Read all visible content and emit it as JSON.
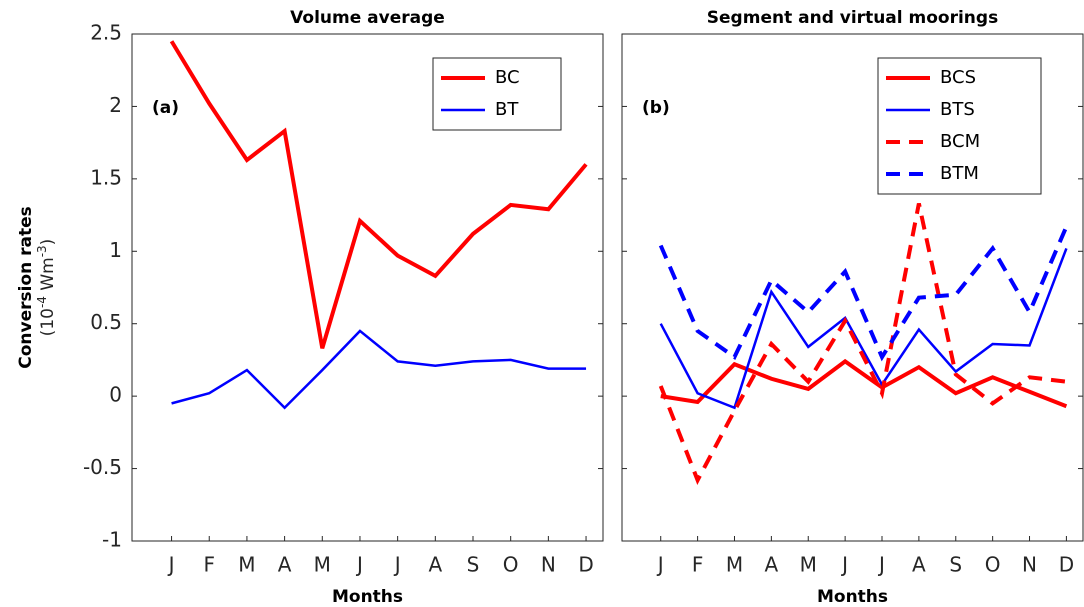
{
  "chart_data": [
    {
      "type": "line",
      "title": "Volume average",
      "panel_label": "(a)",
      "xlabel": "Months",
      "ylabel": "Conversion rates",
      "ylabel_units": [
        "(10",
        "-4",
        " Wm",
        "-3",
        ")"
      ],
      "categories": [
        "J",
        "F",
        "M",
        "A",
        "M",
        "J",
        "J",
        "A",
        "S",
        "O",
        "N",
        "D"
      ],
      "series": [
        {
          "name": "BC",
          "color": "#ff0000",
          "style": "solid",
          "width": "thick",
          "values": [
            2.45,
            2.02,
            1.63,
            1.83,
            0.33,
            1.21,
            0.97,
            0.83,
            1.12,
            1.32,
            1.29,
            1.6
          ]
        },
        {
          "name": "BT",
          "color": "#0000ff",
          "style": "solid",
          "width": "thin",
          "values": [
            -0.05,
            0.02,
            0.18,
            -0.08,
            0.18,
            0.45,
            0.24,
            0.21,
            0.24,
            0.25,
            0.19,
            0.19
          ]
        }
      ],
      "ylim": [
        -1,
        2.5
      ],
      "yticks": [
        -1,
        -0.5,
        0,
        0.5,
        1,
        1.5,
        2,
        2.5
      ],
      "legend": "northeast"
    },
    {
      "type": "line",
      "title": "Segment and virtual moorings",
      "panel_label": "(b)",
      "xlabel": "Months",
      "categories": [
        "J",
        "F",
        "M",
        "A",
        "M",
        "J",
        "J",
        "A",
        "S",
        "O",
        "N",
        "D"
      ],
      "series": [
        {
          "name": "BCS",
          "color": "#ff0000",
          "style": "solid",
          "width": "thick",
          "values": [
            0.0,
            -0.04,
            0.22,
            0.12,
            0.05,
            0.24,
            0.06,
            0.2,
            0.02,
            0.13,
            0.03,
            -0.07
          ]
        },
        {
          "name": "BTS",
          "color": "#0000ff",
          "style": "solid",
          "width": "thin",
          "values": [
            0.5,
            0.02,
            -0.08,
            0.72,
            0.34,
            0.54,
            0.08,
            0.46,
            0.17,
            0.36,
            0.35,
            1.02
          ]
        },
        {
          "name": "BCM",
          "color": "#ff0000",
          "style": "dashed",
          "width": "thick",
          "values": [
            0.07,
            -0.58,
            -0.1,
            0.36,
            0.1,
            0.52,
            0.02,
            1.33,
            0.15,
            -0.05,
            0.13,
            0.1
          ]
        },
        {
          "name": "BTM",
          "color": "#0000ff",
          "style": "dashed",
          "width": "thick",
          "values": [
            1.04,
            0.45,
            0.27,
            0.8,
            0.58,
            0.86,
            0.27,
            0.68,
            0.7,
            1.02,
            0.58,
            1.17
          ]
        }
      ],
      "ylim": [
        -1,
        2.5
      ],
      "yticks": [
        -1,
        -0.5,
        0,
        0.5,
        1,
        1.5,
        2,
        2.5
      ],
      "legend": "northeast"
    }
  ]
}
